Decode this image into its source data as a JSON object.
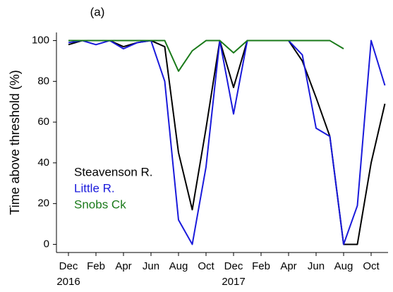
{
  "chart_data": {
    "type": "line",
    "panel_label": "(a)",
    "y_label": "Time above threshold (%)",
    "categories": [
      "Dec",
      null,
      "Feb",
      null,
      "Apr",
      null,
      "Jun",
      null,
      "Aug",
      null,
      "Oct",
      null,
      "Dec",
      null,
      "Feb",
      null,
      "Apr",
      null,
      "Jun",
      null,
      "Aug",
      null,
      "Oct",
      null
    ],
    "years": [
      "2016",
      null,
      null,
      null,
      null,
      null,
      null,
      null,
      null,
      null,
      null,
      null,
      "2017",
      null,
      null,
      null,
      null,
      null,
      null,
      null,
      null,
      null,
      null,
      null
    ],
    "series": [
      {
        "name": "Steavenson R.",
        "color": "#000000",
        "values": [
          98,
          100,
          100,
          100,
          97,
          99,
          100,
          97,
          45,
          17,
          57,
          100,
          77,
          100,
          100,
          100,
          100,
          90,
          72,
          53,
          0,
          0,
          40,
          69
        ]
      },
      {
        "name": "Little R.",
        "color": "#1a1adb",
        "values": [
          99,
          100,
          98,
          100,
          96,
          99,
          100,
          80,
          12,
          0,
          38,
          100,
          64,
          100,
          100,
          100,
          100,
          93,
          57,
          53,
          0,
          19,
          100,
          78
        ]
      },
      {
        "name": "Snobs Ck",
        "color": "#1a7a1a",
        "values": [
          100,
          100,
          100,
          100,
          100,
          100,
          100,
          100,
          85,
          95,
          100,
          100,
          94,
          100,
          100,
          100,
          100,
          100,
          100,
          100,
          96,
          null,
          null,
          null
        ]
      }
    ],
    "ylim": [
      -4,
      104
    ],
    "yticks": [
      0,
      20,
      40,
      60,
      80,
      100
    ],
    "grid": false
  }
}
